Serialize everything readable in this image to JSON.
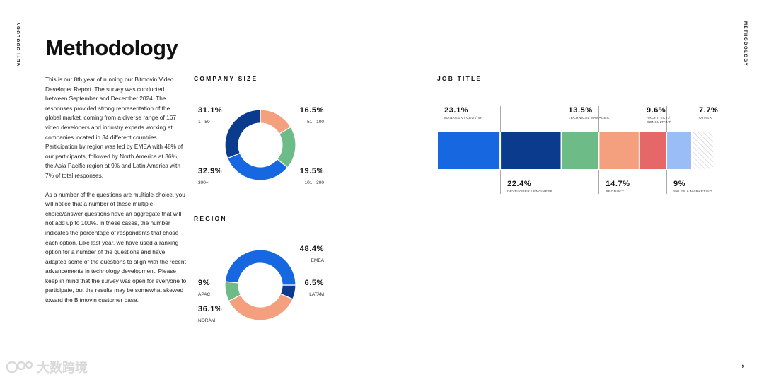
{
  "side_label": "METHODOLOGY",
  "title": "Methodology",
  "intro": {
    "paragraph1": "This is our 8th year of running our Bitmovin Video Developer Report. The survey was conducted between September and December 2024. The responses provided strong representation of the global market, coming from a diverse range of 167 video developers and industry experts working at companies located in 34 different countries. Participation by region was led by EMEA with 48% of our participants, followed by North America at 36%, the Asia Pacific region at 9% and Latin America with 7% of total responses.",
    "paragraph2": "As a number of the questions are multiple-choice, you will notice that a number of these multiple-choice/answer questions have an aggregate that will not add up to 100%. In these cases, the number indicates the percentage of respondents that chose each option. Like last year, we have used a ranking option for a number of the questions and have adapted some of the questions to align with the recent advancements in technology development. Please keep in mind that the survey was open for everyone to participate, but the results may be somewhat skewed toward the Bitmovin customer base."
  },
  "page_number": "9",
  "watermark_text": "大数跨境",
  "chart_data": [
    {
      "type": "pie",
      "donut": true,
      "title": "COMPANY SIZE",
      "slices": [
        {
          "label": "51 - 100",
          "display": "16.5%",
          "value": 16.5,
          "color": "#f4a07e"
        },
        {
          "label": "101 - 300",
          "display": "19.5%",
          "value": 19.5,
          "color": "#6dbb86"
        },
        {
          "label": "300+",
          "display": "32.9%",
          "value": 32.9,
          "color": "#1667e0"
        },
        {
          "label": "1 - 50",
          "display": "31.1%",
          "value": 31.1,
          "color": "#0a3b8c"
        }
      ]
    },
    {
      "type": "pie",
      "donut": true,
      "title": "REGION",
      "slices": [
        {
          "label": "LATAM",
          "display": "6.5%",
          "value": 6.5,
          "color": "#0a3b8c"
        },
        {
          "label": "NORAM",
          "display": "36.1%",
          "value": 36.1,
          "color": "#f4a07e"
        },
        {
          "label": "APAC",
          "display": "9%",
          "value": 9,
          "color": "#6dbb86"
        },
        {
          "label": "EMEA",
          "display": "48.4%",
          "value": 48.4,
          "color": "#1667e0"
        }
      ]
    },
    {
      "type": "bar",
      "stacked": true,
      "orientation": "horizontal",
      "title": "JOB TITLE",
      "segments": [
        {
          "label": "MANAGER / CEO / VP",
          "display": "23.1%",
          "value": 23.1,
          "color": "#1667e0",
          "label_position": "top"
        },
        {
          "label": "DEVELOPER / ENGINEER",
          "display": "22.4%",
          "value": 22.4,
          "color": "#0a3b8c",
          "label_position": "bottom"
        },
        {
          "label": "TECHNICAL MANAGER",
          "display": "13.5%",
          "value": 13.5,
          "color": "#6dbb86",
          "label_position": "top"
        },
        {
          "label": "PRODUCT",
          "display": "14.7%",
          "value": 14.7,
          "color": "#f4a07e",
          "label_position": "bottom"
        },
        {
          "label": "ARCHITECT / CONSULTANT",
          "display": "9.6%",
          "value": 9.6,
          "color": "#e56767",
          "label_position": "top"
        },
        {
          "label": "SALES & MARKETING",
          "display": "9%",
          "value": 9,
          "color": "#9bbdf5",
          "label_position": "bottom"
        },
        {
          "label": "OTHER",
          "display": "7.7%",
          "value": 7.7,
          "color": "hatched",
          "label_position": "top"
        }
      ]
    }
  ]
}
